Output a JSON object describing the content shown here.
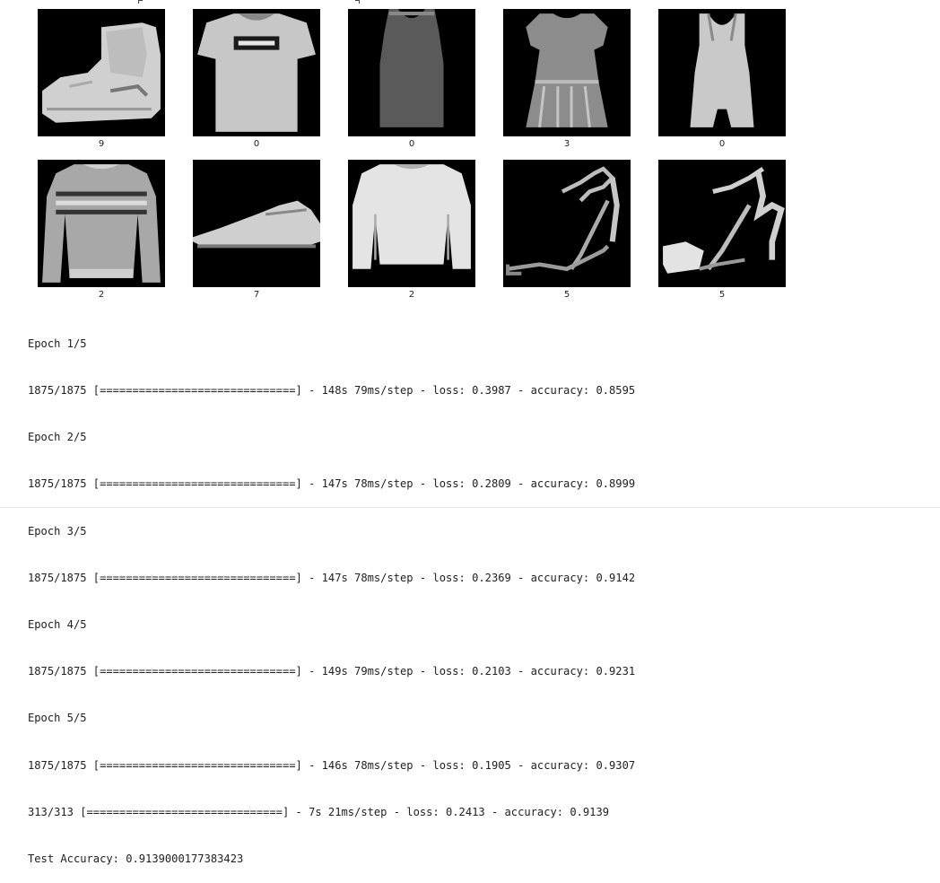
{
  "images": [
    {
      "name": "ankle-boot",
      "label": "9"
    },
    {
      "name": "tshirt",
      "label": "0"
    },
    {
      "name": "tank-top",
      "label": "0"
    },
    {
      "name": "dress",
      "label": "3"
    },
    {
      "name": "tank-top-2",
      "label": "0"
    },
    {
      "name": "pullover",
      "label": "2"
    },
    {
      "name": "sneaker",
      "label": "7"
    },
    {
      "name": "pullover-2",
      "label": "2"
    },
    {
      "name": "sandal",
      "label": "5"
    },
    {
      "name": "sandal-2",
      "label": "5"
    }
  ],
  "console": {
    "lines": [
      "Epoch 1/5",
      "1875/1875 [==============================] - 148s 79ms/step - loss: 0.3987 - accuracy: 0.8595",
      "Epoch 2/5",
      "1875/1875 [==============================] - 147s 78ms/step - loss: 0.2809 - accuracy: 0.8999",
      "Epoch 3/5",
      "1875/1875 [==============================] - 147s 78ms/step - loss: 0.2369 - accuracy: 0.9142",
      "Epoch 4/5",
      "1875/1875 [==============================] - 149s 79ms/step - loss: 0.2103 - accuracy: 0.9231",
      "Epoch 5/5",
      "1875/1875 [==============================] - 146s 78ms/step - loss: 0.1905 - accuracy: 0.9307",
      "313/313 [==============================] - 7s 21ms/step - loss: 0.2413 - accuracy: 0.9139",
      "Test Accuracy: 0.9139000177383423"
    ]
  }
}
